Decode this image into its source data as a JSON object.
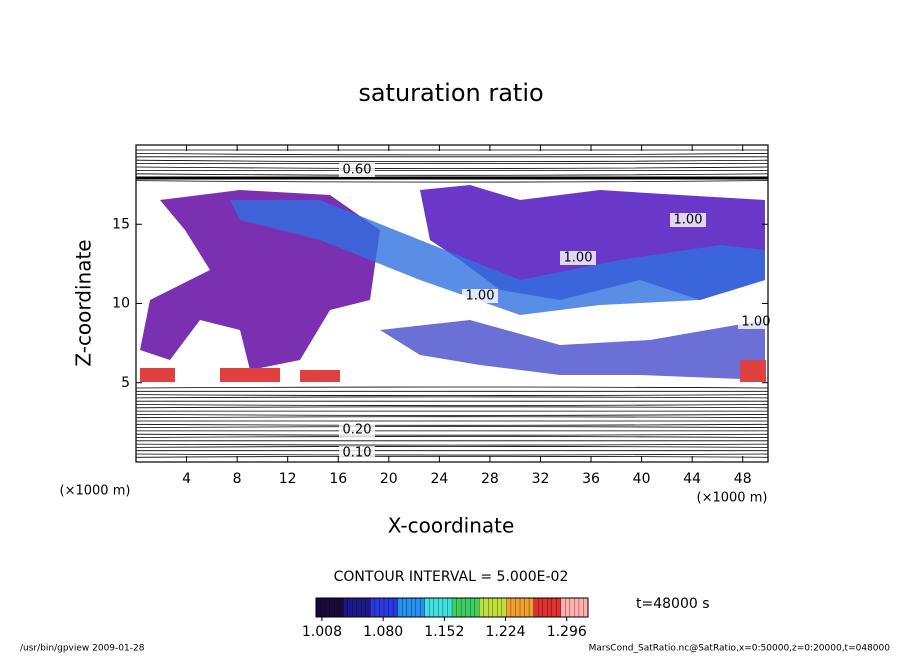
{
  "chart_data": {
    "type": "heatmap",
    "title": "saturation ratio",
    "x_label": "X-coordinate",
    "y_label": "Z-coordinate",
    "x_unit": "(×1000 m)",
    "y_unit": "(×1000 m)",
    "xlim": [
      0,
      50
    ],
    "xticks": [
      4,
      8,
      12,
      16,
      20,
      24,
      28,
      32,
      36,
      40,
      44,
      48
    ],
    "ylim": [
      0,
      20
    ],
    "yticks": [
      5,
      10,
      15
    ],
    "contour_interval": "CONTOUR INTERVAL = 5.000E-02",
    "contour_labels": [
      "0.60",
      "1.00",
      "1.00",
      "1.00",
      "1.00",
      "0.20",
      "0.10"
    ],
    "clim": [
      1.001,
      1.321
    ],
    "cticks": [
      1.008,
      {
        "value": 1.08,
        "label": "1.080"
      },
      1.152,
      1.224,
      1.296
    ],
    "colormap": [
      "#1a0a3c",
      "#1c1a8a",
      "#2a3ae0",
      "#2a90f0",
      "#40e0e0",
      "#40d060",
      "#c0e040",
      "#f0a030",
      "#e03030",
      "#ffb0b0"
    ],
    "time_label": "t=48000 s",
    "footer_left": "/usr/bin/gpview  2009-01-28",
    "footer_right": "MarsCond_SatRatio.nc@SatRatio,x=0:50000,z=0:20000,t=048000"
  }
}
